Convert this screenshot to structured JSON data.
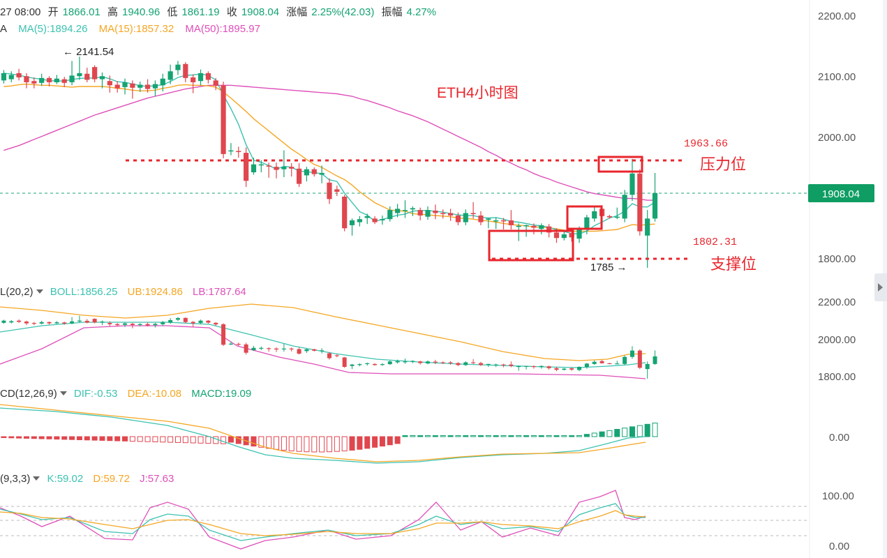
{
  "header": {
    "time": "27 08:00",
    "open_label": "开",
    "open": "1866.01",
    "high_label": "高",
    "high": "1940.96",
    "low_label": "低",
    "low": "1861.19",
    "close_label": "收",
    "close": "1908.04",
    "change_label": "涨幅",
    "change": "2.25%(42.03)",
    "amp_label": "振幅",
    "amp": "4.27%"
  },
  "ma_legend": {
    "prefix": "A",
    "ma5": "MA(5):1894.26",
    "ma15": "MA(15):1857.32",
    "ma50": "MA(50):1895.97"
  },
  "boll_legend": {
    "prefix": "L(20,2)",
    "boll": "BOLL:1856.25",
    "ub": "UB:1924.86",
    "lb": "LB:1787.64"
  },
  "macd_legend": {
    "prefix": "CD(12,26,9)",
    "dif": "DIF:-0.53",
    "dea": "DEA:-10.08",
    "macd": "MACD:19.09"
  },
  "kdj_legend": {
    "prefix": "(9,3,3)",
    "k": "K:59.02",
    "d": "D:59.72",
    "j": "J:57.63"
  },
  "colors": {
    "up": "#15a372",
    "down": "#e0464e",
    "ma5": "#3cc2b0",
    "ma15": "#f5a623",
    "ma50": "#de4fb9",
    "annotation": "#e8262d",
    "price_tag": "#0f9d63",
    "text": "#333333",
    "axis": "#555555"
  },
  "annotations": {
    "title": "ETH4小时图",
    "resistance_label": "压力位",
    "resistance_value": "1963.66",
    "support_label": "支撑位",
    "support_value": "1802.31",
    "high_marker": "← 2141.54",
    "low_marker": "1785 →",
    "current_price": "1908.04"
  },
  "axes": {
    "main_ticks": [
      "2200.00",
      "2100.00",
      "2000.00",
      "1800.00"
    ],
    "boll_ticks": [
      "2200.00",
      "2000.00",
      "1800.00"
    ],
    "macd_ticks": [
      "0.00"
    ],
    "kdj_ticks": [
      "100.00",
      "0.00"
    ]
  },
  "chart_data": {
    "type": "candlestick",
    "ylim": [
      1782,
      2200
    ],
    "resistance": 1963.66,
    "support": 1802.31,
    "candles": [
      [
        2093,
        2105,
        2088,
        2110
      ],
      [
        2095,
        2102,
        2090,
        2108
      ],
      [
        2105,
        2098,
        2093,
        2112
      ],
      [
        2100,
        2090,
        2080,
        2105
      ],
      [
        2092,
        2088,
        2080,
        2098
      ],
      [
        2089,
        2097,
        2084,
        2104
      ],
      [
        2097,
        2090,
        2083,
        2100
      ],
      [
        2090,
        2096,
        2087,
        2102
      ],
      [
        2095,
        2089,
        2082,
        2099
      ],
      [
        2090,
        2101,
        2085,
        2125
      ],
      [
        2100,
        2105,
        2094,
        2132
      ],
      [
        2104,
        2094,
        2090,
        2114
      ],
      [
        2115,
        2095,
        2090,
        2118
      ],
      [
        2095,
        2100,
        2080,
        2106
      ],
      [
        2092,
        2085,
        2073,
        2101
      ],
      [
        2086,
        2080,
        2073,
        2092
      ],
      [
        2082,
        2090,
        2070,
        2096
      ],
      [
        2088,
        2081,
        2063,
        2093
      ],
      [
        2081,
        2086,
        2074,
        2091
      ],
      [
        2086,
        2079,
        2073,
        2095
      ],
      [
        2080,
        2087,
        2067,
        2093
      ],
      [
        2085,
        2096,
        2075,
        2104
      ],
      [
        2094,
        2108,
        2087,
        2119
      ],
      [
        2110,
        2119,
        2102,
        2125
      ],
      [
        2120,
        2097,
        2090,
        2123
      ],
      [
        2098,
        2090,
        2072,
        2103
      ],
      [
        2092,
        2105,
        2085,
        2111
      ],
      [
        2105,
        2094,
        2088,
        2108
      ],
      [
        2093,
        2084,
        2077,
        2097
      ],
      [
        2085,
        1972,
        1965,
        2091
      ],
      [
        1977,
        1978,
        1970,
        1990
      ],
      [
        1977,
        1976,
        1966,
        1984
      ],
      [
        1974,
        1928,
        1918,
        1983
      ],
      [
        1942,
        1955,
        1938,
        1966
      ],
      [
        1955,
        1955,
        1942,
        1962
      ],
      [
        1953,
        1952,
        1933,
        1958
      ],
      [
        1951,
        1946,
        1932,
        1958
      ],
      [
        1947,
        1951,
        1934,
        1978
      ],
      [
        1951,
        1948,
        1935,
        1957
      ],
      [
        1948,
        1923,
        1918,
        1957
      ],
      [
        1937,
        1947,
        1927,
        1951
      ],
      [
        1947,
        1939,
        1935,
        1950
      ],
      [
        1938,
        1941,
        1924,
        1953
      ],
      [
        1925,
        1898,
        1890,
        1932
      ],
      [
        1914,
        1910,
        1903,
        1920
      ],
      [
        1902,
        1850,
        1845,
        1905
      ],
      [
        1855,
        1863,
        1838,
        1866
      ],
      [
        1860,
        1865,
        1853,
        1870
      ],
      [
        1867,
        1870,
        1857,
        1874
      ],
      [
        1866,
        1860,
        1857,
        1870
      ],
      [
        1863,
        1865,
        1856,
        1871
      ],
      [
        1865,
        1880,
        1861,
        1886
      ],
      [
        1875,
        1882,
        1868,
        1890
      ],
      [
        1879,
        1880,
        1867,
        1896
      ],
      [
        1881,
        1883,
        1870,
        1886
      ],
      [
        1880,
        1871,
        1863,
        1884
      ],
      [
        1869,
        1880,
        1864,
        1886
      ],
      [
        1879,
        1875,
        1865,
        1889
      ],
      [
        1875,
        1874,
        1866,
        1881
      ],
      [
        1875,
        1871,
        1862,
        1882
      ],
      [
        1871,
        1860,
        1855,
        1876
      ],
      [
        1860,
        1875,
        1855,
        1881
      ],
      [
        1875,
        1874,
        1866,
        1893
      ],
      [
        1871,
        1860,
        1855,
        1878
      ],
      [
        1864,
        1866,
        1850,
        1867
      ],
      [
        1863,
        1863,
        1849,
        1868
      ],
      [
        1863,
        1862,
        1848,
        1867
      ],
      [
        1863,
        1855,
        1848,
        1880
      ],
      [
        1854,
        1854,
        1829,
        1858
      ],
      [
        1855,
        1855,
        1836,
        1856
      ],
      [
        1854,
        1851,
        1840,
        1858
      ],
      [
        1849,
        1855,
        1840,
        1858
      ],
      [
        1853,
        1843,
        1835,
        1857
      ],
      [
        1843,
        1834,
        1826,
        1850
      ],
      [
        1834,
        1840,
        1830,
        1844
      ],
      [
        1842,
        1835,
        1828,
        1848
      ],
      [
        1833,
        1850,
        1826,
        1853
      ],
      [
        1850,
        1868,
        1840,
        1872
      ],
      [
        1866,
        1878,
        1861,
        1886
      ],
      [
        1882,
        1870,
        1868,
        1888
      ],
      [
        1870,
        1868,
        1866,
        1872
      ],
      [
        1868,
        1869,
        1865,
        1884
      ],
      [
        1866,
        1905,
        1860,
        1913
      ],
      [
        1905,
        1940,
        1895,
        1964
      ],
      [
        1940,
        1845,
        1838,
        1947
      ],
      [
        1838,
        1866,
        1785,
        1880
      ],
      [
        1866,
        1908,
        1861,
        1941
      ]
    ],
    "ma15": [
      2083,
      2084,
      2086,
      2087,
      2086,
      2085,
      2085,
      2084,
      2083,
      2082,
      2083,
      2083,
      2083,
      2083,
      2082,
      2080,
      2079,
      2077,
      2076,
      2076,
      2077,
      2080,
      2082,
      2085,
      2086,
      2085,
      2085,
      2084,
      2082,
      2074,
      2064,
      2053,
      2042,
      2030,
      2020,
      2010,
      2000,
      1990,
      1980,
      1972,
      1963,
      1955,
      1950,
      1943,
      1936,
      1930,
      1921,
      1910,
      1901,
      1892,
      1886,
      1880,
      1879,
      1878,
      1874,
      1873,
      1872,
      1871,
      1870,
      1869,
      1867,
      1866,
      1865,
      1863,
      1862,
      1860,
      1858,
      1856,
      1855,
      1854,
      1852,
      1852,
      1851,
      1849,
      1847,
      1845,
      1845,
      1845,
      1845,
      1846,
      1847,
      1848,
      1852,
      1856,
      1855,
      1856,
      1857
    ],
    "ma50": [
      1978,
      1982,
      1986,
      1991,
      1996,
      2001,
      2006,
      2011,
      2016,
      2021,
      2026,
      2031,
      2036,
      2040,
      2044,
      2048,
      2052,
      2056,
      2060,
      2064,
      2067,
      2070,
      2073,
      2076,
      2079,
      2081,
      2083,
      2085,
      2085,
      2085,
      2085,
      2084,
      2083,
      2082,
      2081,
      2080,
      2079,
      2078,
      2077,
      2076,
      2075,
      2074,
      2073,
      2072,
      2071,
      2069,
      2067,
      2063,
      2060,
      2056,
      2052,
      2048,
      2043,
      2039,
      2035,
      2030,
      2025,
      2019,
      2013,
      2007,
      2001,
      1995,
      1989,
      1983,
      1976,
      1970,
      1963,
      1957,
      1951,
      1946,
      1940,
      1935,
      1931,
      1926,
      1922,
      1918,
      1914,
      1910,
      1907,
      1905,
      1903,
      1901,
      1899,
      1899,
      1898,
      1896,
      1896
    ]
  }
}
